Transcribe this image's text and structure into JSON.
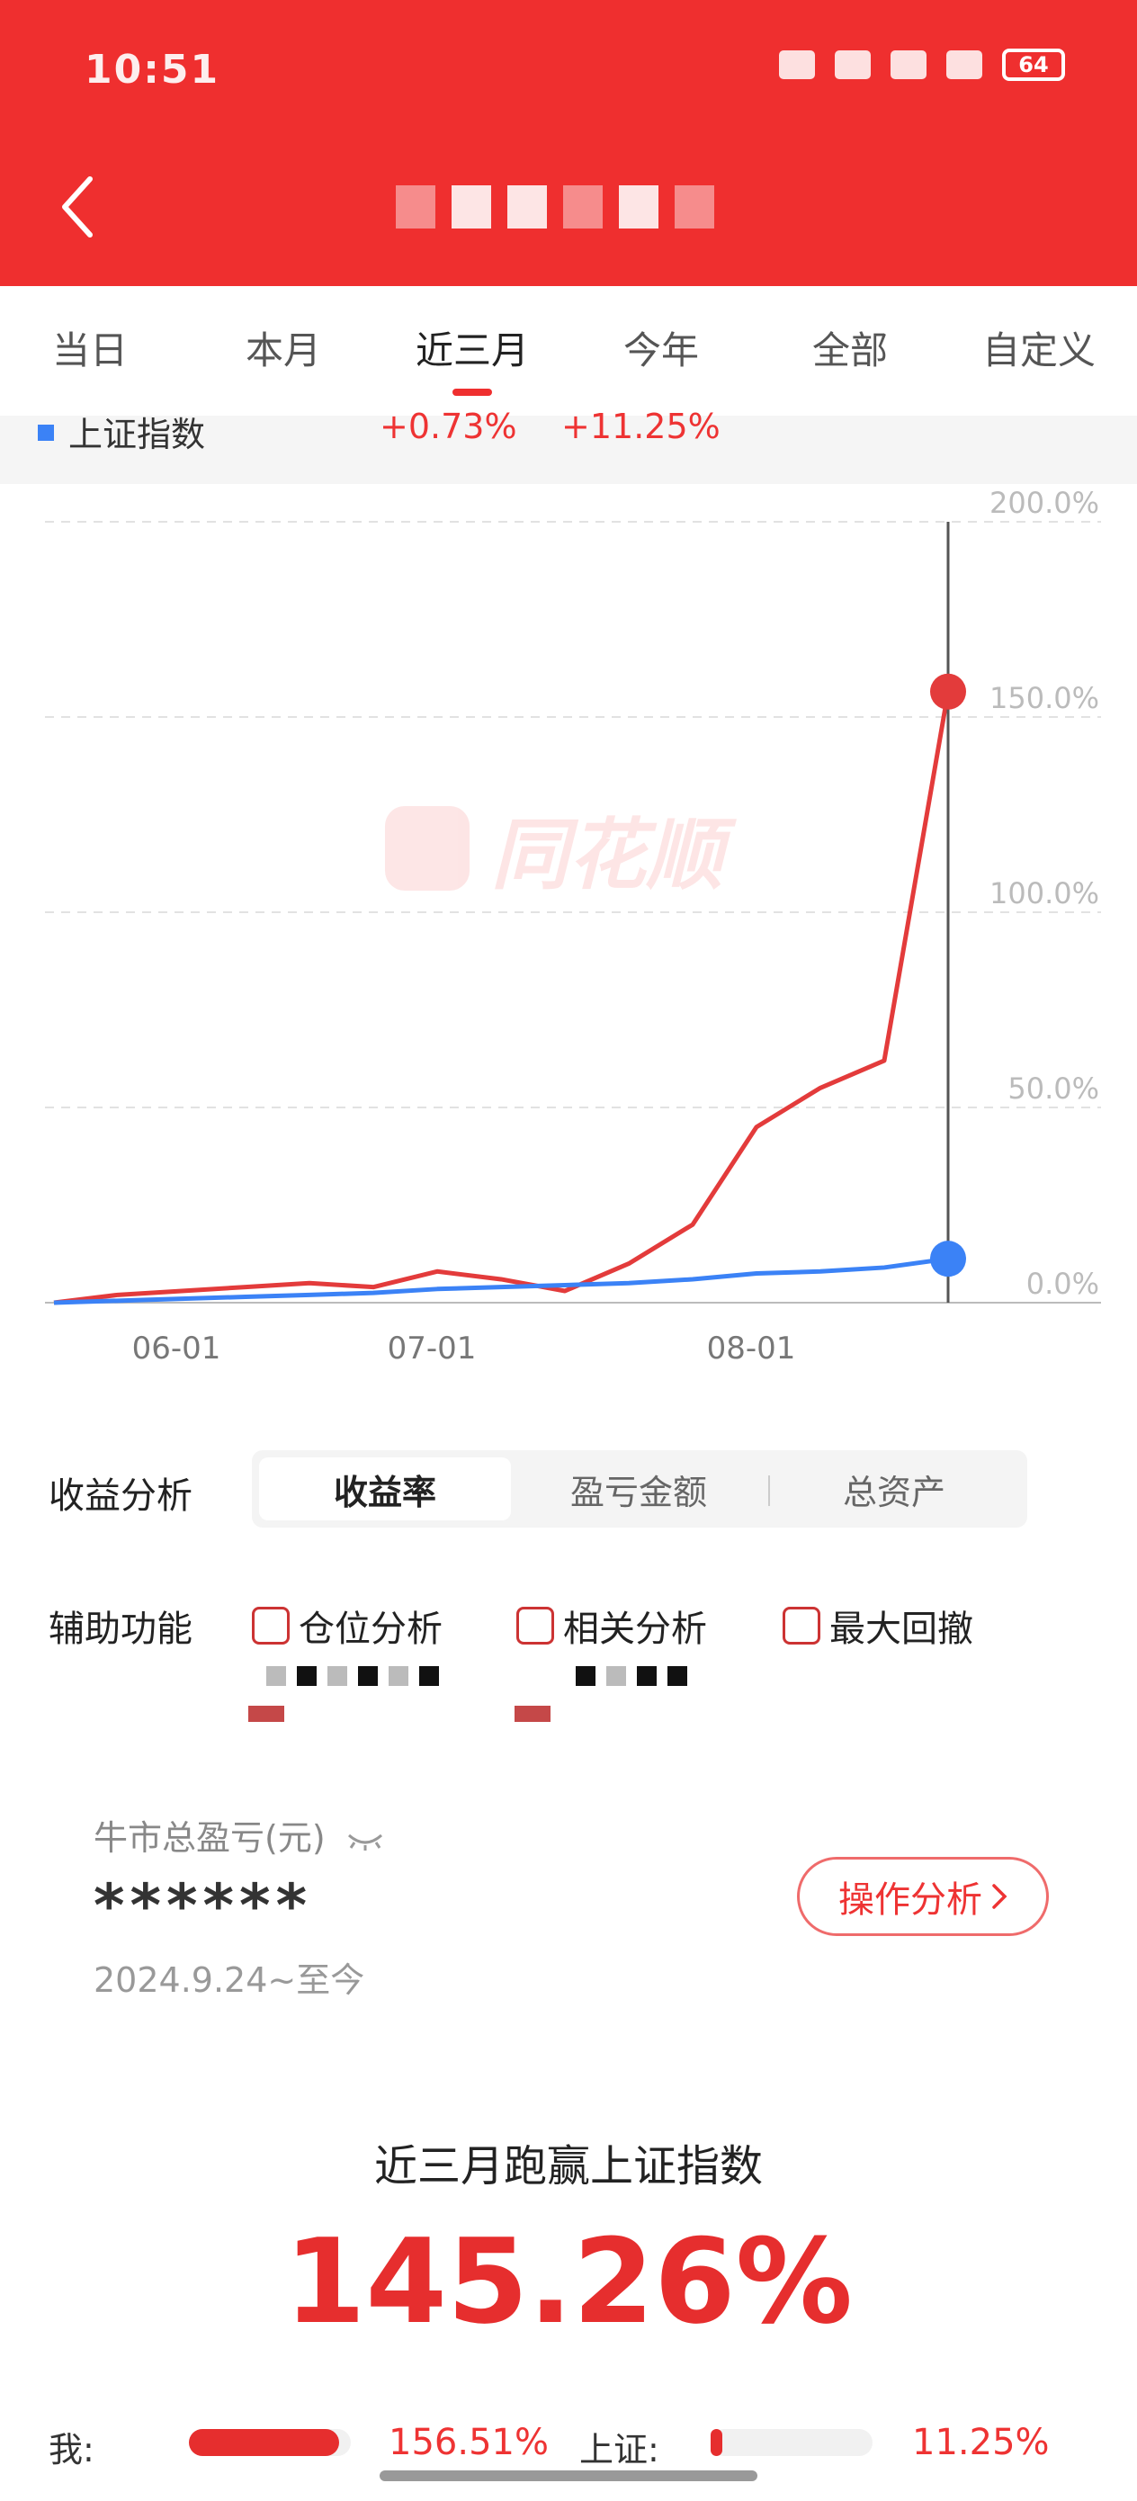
{
  "status_bar": {
    "time": "10:51",
    "battery": "64"
  },
  "tabs": [
    {
      "label": "当日"
    },
    {
      "label": "本月"
    },
    {
      "label": "近三月"
    },
    {
      "label": "今年"
    },
    {
      "label": "全部"
    },
    {
      "label": "自定义"
    }
  ],
  "legend": {
    "name": "上证指数",
    "value1": "+0.73%",
    "value2": "+11.25%"
  },
  "watermark": "同花顺",
  "chart_data": {
    "type": "line",
    "x": [
      "2025-05-20",
      "2025-05-26",
      "2025-06-01",
      "2025-06-08",
      "2025-06-15",
      "2025-06-22",
      "2025-06-29",
      "2025-07-06",
      "2025-07-13",
      "2025-07-20",
      "2025-07-27",
      "2025-08-03",
      "2025-08-10",
      "2025-08-17",
      "2025-08-24"
    ],
    "x_ticks": [
      "06-01",
      "07-01",
      "08-01"
    ],
    "y_ticks": [
      "200.0%",
      "150.0%",
      "100.0%",
      "50.0%",
      "0.0%"
    ],
    "ylim": [
      0,
      200
    ],
    "series": [
      {
        "color": "#e33b3b",
        "values": [
          0,
          2,
          3,
          4,
          5,
          4,
          8,
          6,
          3,
          10,
          20,
          45,
          55,
          62,
          156.51
        ]
      },
      {
        "color": "#3b82f6",
        "values": [
          0,
          0.5,
          1,
          1.5,
          2,
          2.5,
          3.5,
          4,
          4.5,
          5,
          6,
          7.5,
          8,
          9,
          11.25
        ]
      }
    ],
    "cursor_index": 14
  },
  "analysis": {
    "label": "收益分析",
    "segments": [
      "收益率",
      "盈亏金额",
      "总资产"
    ],
    "active_segment": 0
  },
  "aux": {
    "label": "辅助功能",
    "options": [
      "仓位分析",
      "相关分析",
      "最大回撤"
    ]
  },
  "pnl": {
    "label": "牛市总盈亏(元)",
    "value": "******",
    "date_range": "2024.9.24~至今",
    "action": "操作分析"
  },
  "beat": {
    "title": "近三月跑赢上证指数",
    "value": "145.26%"
  },
  "compare": {
    "me_label": "我:",
    "me_value": "156.51%",
    "me_fraction": 0.93,
    "index_label": "上证:",
    "index_value": "11.25%",
    "index_fraction": 0.07
  }
}
